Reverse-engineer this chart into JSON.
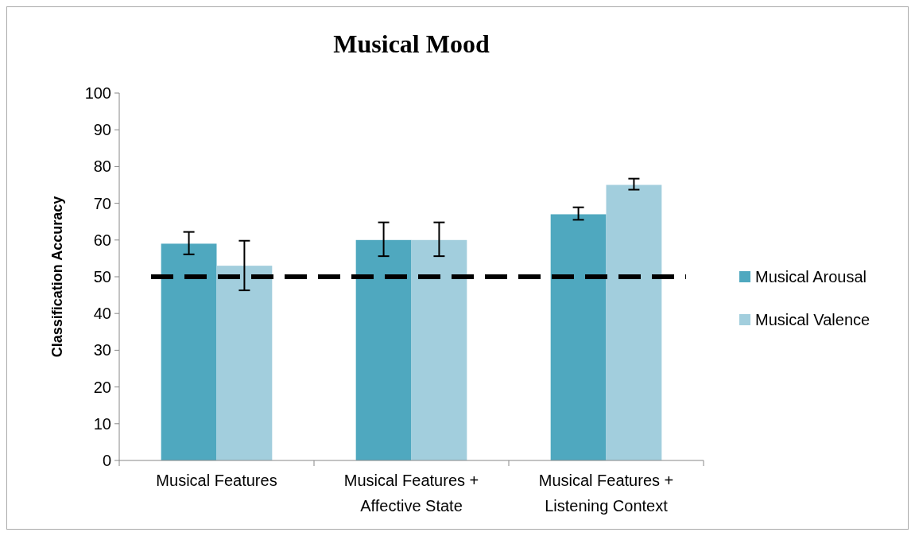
{
  "chart_data": {
    "type": "bar",
    "title": "Musical Mood",
    "ylabel": "Classification Accuracy",
    "categories": [
      "Musical Features",
      "Musical Features + Affective State",
      "Musical Features + Listening Context"
    ],
    "series": [
      {
        "name": "Musical Arousal",
        "color": "#4fa8bf",
        "values": [
          59,
          60,
          67
        ],
        "errors": [
          [
            56.1,
            62.2
          ],
          [
            55.6,
            64.8
          ],
          [
            65.5,
            68.9
          ]
        ]
      },
      {
        "name": "Musical Valence",
        "color": "#a2cedd",
        "values": [
          53,
          60,
          75
        ],
        "errors": [
          [
            46.3,
            59.8
          ],
          [
            55.6,
            64.8
          ],
          [
            73.7,
            76.7
          ]
        ]
      }
    ],
    "ylim": [
      0,
      100
    ],
    "yticks": [
      0,
      10,
      20,
      30,
      40,
      50,
      60,
      70,
      80,
      90,
      100
    ],
    "ref_lines": [
      {
        "axis": "y",
        "value": 50,
        "color": "#000000",
        "line_style": "dashed"
      }
    ],
    "legend": "right"
  }
}
